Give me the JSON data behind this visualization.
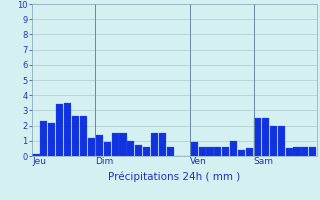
{
  "xlabel": "Précipitations 24h ( mm )",
  "ylim": [
    0,
    10
  ],
  "background_color": "#d5f0f0",
  "bar_color": "#1133dd",
  "bar_edge_color": "#3355ff",
  "grid_color": "#aacccc",
  "tick_color": "#2233bb",
  "label_color": "#2233bb",
  "bar_values": [
    0.1,
    2.3,
    2.2,
    3.4,
    3.5,
    2.6,
    2.6,
    1.2,
    1.4,
    0.9,
    1.5,
    1.5,
    1.0,
    0.7,
    0.6,
    1.5,
    1.5,
    0.6,
    0.0,
    0.0,
    0.9,
    0.6,
    0.6,
    0.6,
    0.6,
    1.0,
    0.4,
    0.5,
    2.5,
    2.5,
    2.0,
    2.0,
    0.5,
    0.6,
    0.6,
    0.6
  ],
  "day_labels": [
    "Jeu",
    "Dim",
    "Ven",
    "Sam"
  ],
  "day_positions": [
    0,
    8,
    20,
    28
  ],
  "vline_positions": [
    8,
    20,
    28
  ],
  "n_bars": 36,
  "ytick_fontsize": 6,
  "xtick_fontsize": 6.5,
  "xlabel_fontsize": 7.5
}
